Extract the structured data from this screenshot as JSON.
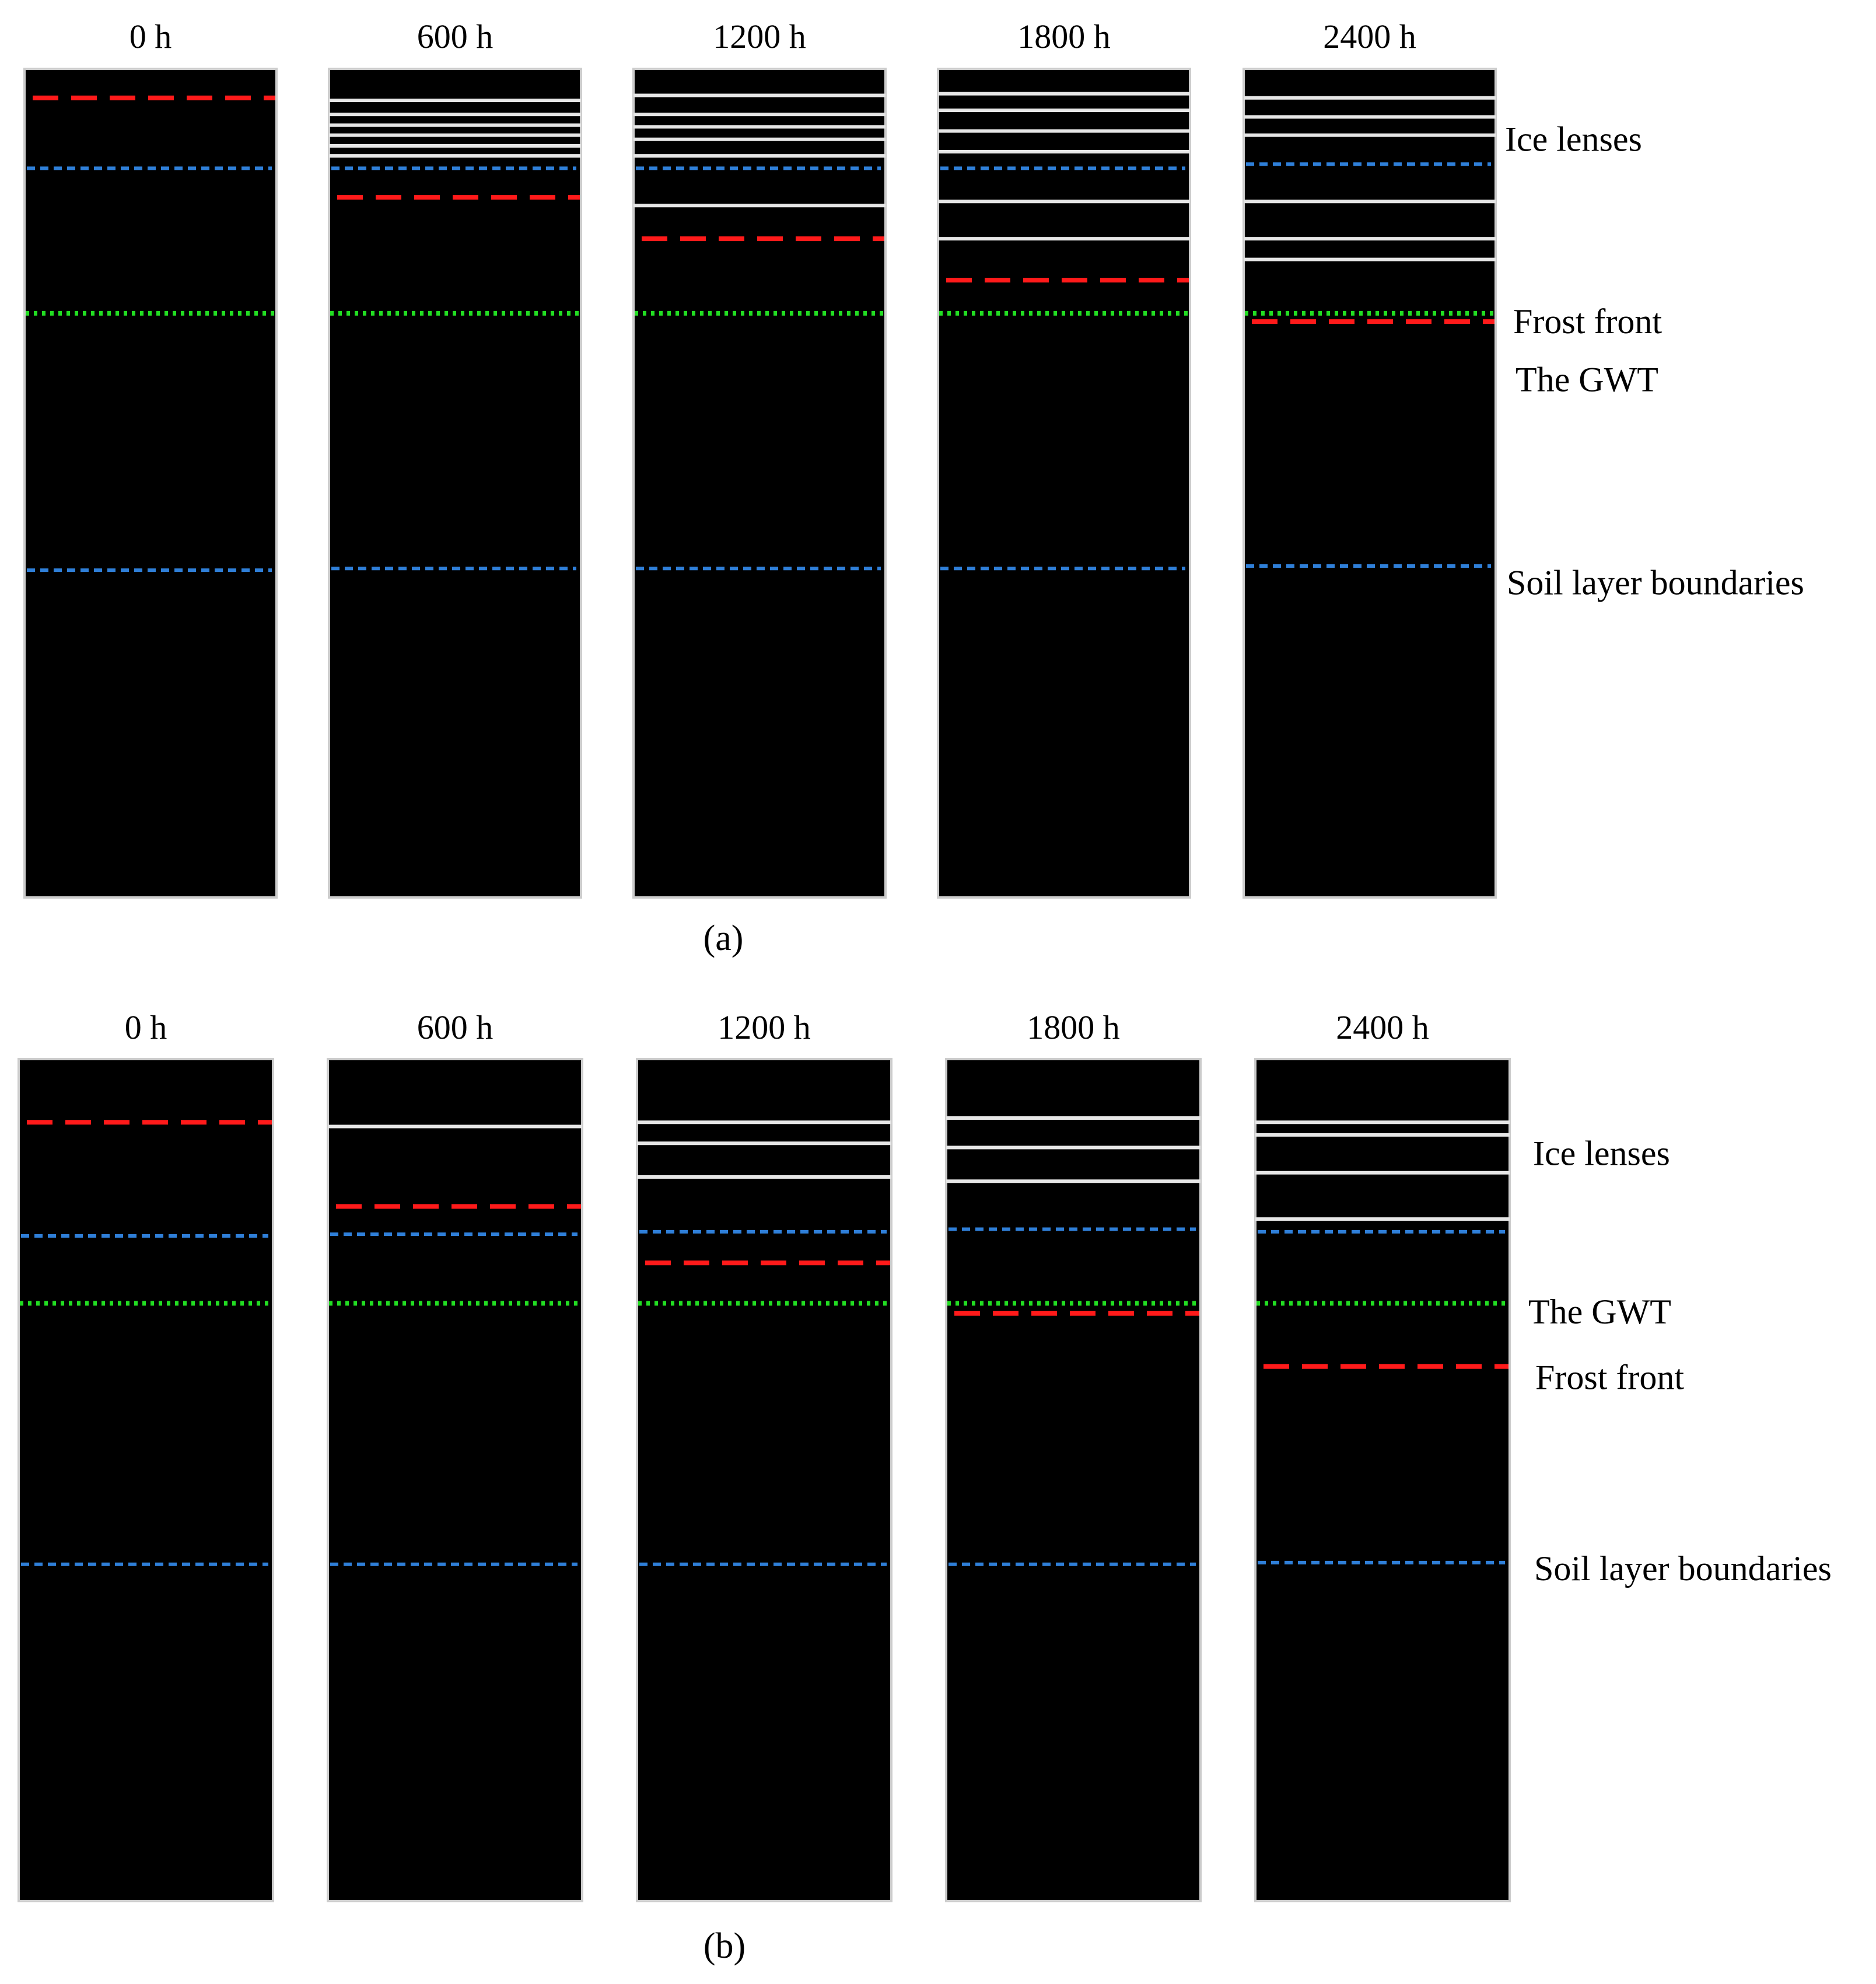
{
  "colors": {
    "column_fill": "#000000",
    "column_border": "#cccccc",
    "ice_lens": "#e6e6e6",
    "frost_front": "#ff1a1a",
    "gwt": "#22dd22",
    "soil_boundary": "#2f7fd8"
  },
  "line_styles": {
    "frost_front": "long-dash",
    "gwt": "dotted",
    "soil_boundary": "short-dash",
    "ice_lens": "solid"
  },
  "panels": [
    {
      "caption": "(a)",
      "columns": [
        {
          "time": "0 h",
          "ice_lens_depths": [],
          "frost_front_depth": 0.035,
          "gwt_depth": 0.295,
          "soil_boundary_depths": [
            0.12,
            0.605
          ]
        },
        {
          "time": "600 h",
          "ice_lens_depths": [
            0.038,
            0.055,
            0.068,
            0.08,
            0.093,
            0.105
          ],
          "frost_front_depth": 0.155,
          "gwt_depth": 0.295,
          "soil_boundary_depths": [
            0.12,
            0.603
          ]
        },
        {
          "time": "1200 h",
          "ice_lens_depths": [
            0.032,
            0.055,
            0.07,
            0.085,
            0.105,
            0.165
          ],
          "frost_front_depth": 0.205,
          "gwt_depth": 0.295,
          "soil_boundary_depths": [
            0.12,
            0.603
          ]
        },
        {
          "time": "1800 h",
          "ice_lens_depths": [
            0.03,
            0.05,
            0.075,
            0.1,
            0.16,
            0.205
          ],
          "frost_front_depth": 0.255,
          "gwt_depth": 0.295,
          "soil_boundary_depths": [
            0.12,
            0.603
          ]
        },
        {
          "time": "2400 h",
          "ice_lens_depths": [
            0.035,
            0.058,
            0.08,
            0.16,
            0.205,
            0.23
          ],
          "frost_front_depth": 0.305,
          "gwt_depth": 0.295,
          "soil_boundary_depths": [
            0.115,
            0.6
          ]
        }
      ],
      "labels": [
        {
          "text": "Ice lenses",
          "depth": 0.085
        },
        {
          "text": "Frost front",
          "depth": 0.305
        },
        {
          "text": "The GWT",
          "depth": 0.375
        },
        {
          "text": "Soil layer boundaries",
          "depth": 0.62
        }
      ]
    },
    {
      "caption": "(b)",
      "columns": [
        {
          "time": "0 h",
          "ice_lens_depths": [],
          "frost_front_depth": 0.075,
          "gwt_depth": 0.29,
          "soil_boundary_depths": [
            0.21,
            0.6
          ]
        },
        {
          "time": "600 h",
          "ice_lens_depths": [
            0.08
          ],
          "frost_front_depth": 0.175,
          "gwt_depth": 0.29,
          "soil_boundary_depths": [
            0.208,
            0.6
          ]
        },
        {
          "time": "1200 h",
          "ice_lens_depths": [
            0.075,
            0.1,
            0.14
          ],
          "frost_front_depth": 0.242,
          "gwt_depth": 0.29,
          "soil_boundary_depths": [
            0.205,
            0.6
          ]
        },
        {
          "time": "1800 h",
          "ice_lens_depths": [
            0.07,
            0.105,
            0.145
          ],
          "frost_front_depth": 0.302,
          "gwt_depth": 0.29,
          "soil_boundary_depths": [
            0.202,
            0.6
          ]
        },
        {
          "time": "2400 h",
          "ice_lens_depths": [
            0.075,
            0.09,
            0.135,
            0.19
          ],
          "frost_front_depth": 0.365,
          "gwt_depth": 0.29,
          "soil_boundary_depths": [
            0.205,
            0.598
          ]
        }
      ],
      "labels": [
        {
          "text": "Ice lenses",
          "depth": 0.112
        },
        {
          "text": "The GWT",
          "depth": 0.3
        },
        {
          "text": "Frost front",
          "depth": 0.378
        },
        {
          "text": "Soil layer boundaries",
          "depth": 0.605
        }
      ]
    }
  ]
}
